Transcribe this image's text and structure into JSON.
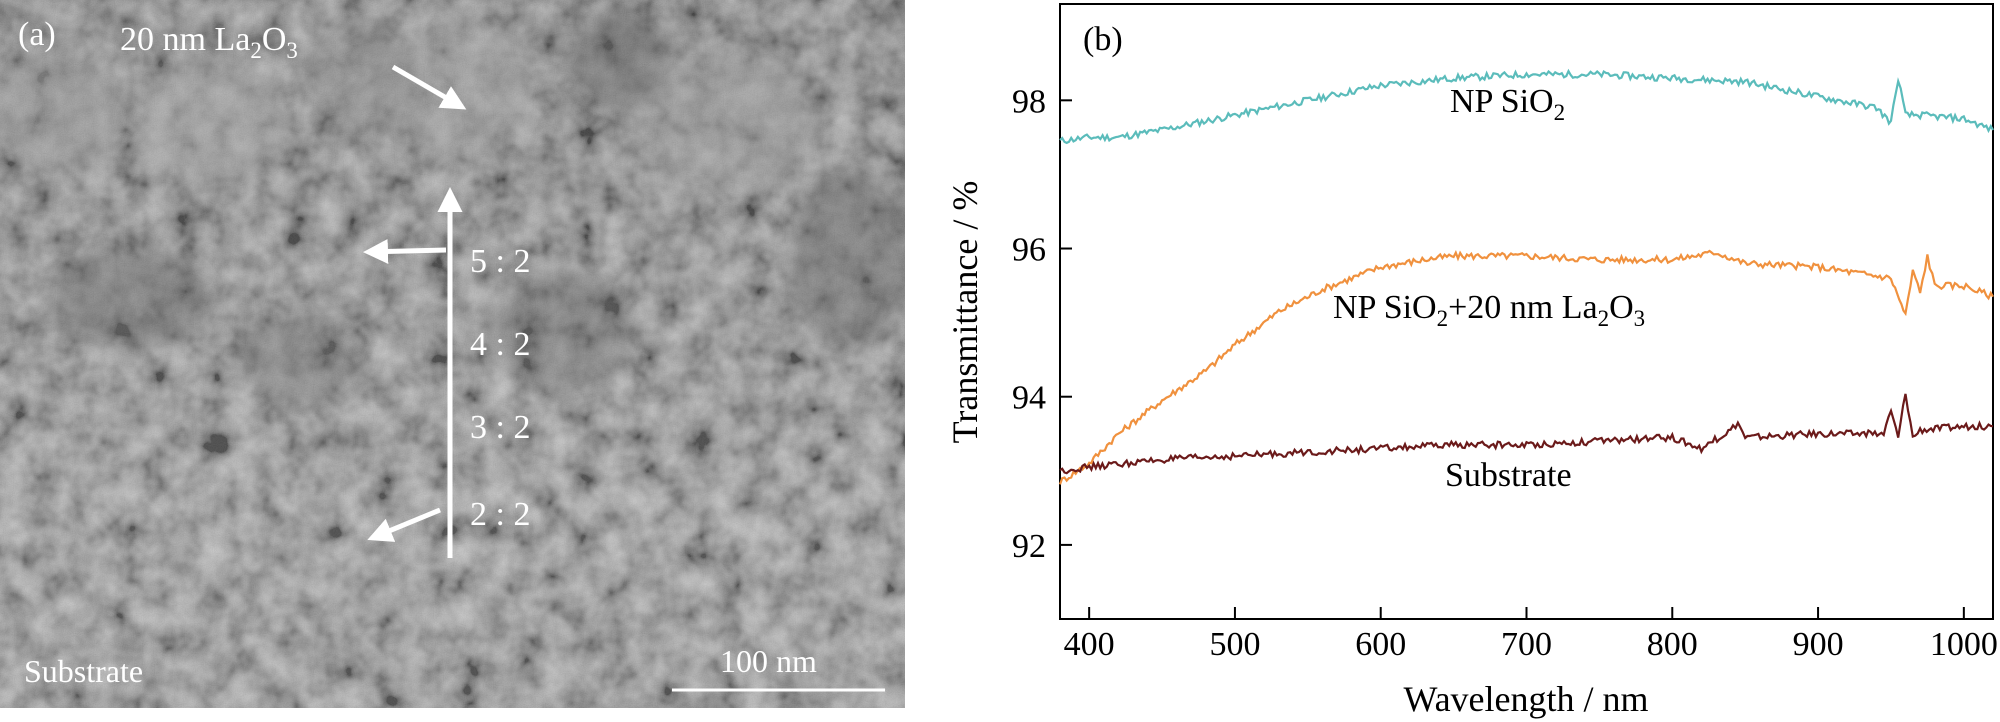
{
  "panel_a": {
    "label": "(a)",
    "top_label": {
      "prefix": "20 nm La",
      "sub1": "2",
      "mid": "O",
      "sub2": "3"
    },
    "ratios": [
      "5 : 2",
      "4 : 2",
      "3 : 2",
      "2 : 2"
    ],
    "substrate_label": "Substrate",
    "scale_bar_label": "100 nm"
  },
  "chart_data": {
    "type": "line",
    "panel_label": "(b)",
    "xlabel": "Wavelength / nm",
    "ylabel": "Transmittance / %",
    "xlim": [
      380,
      1020
    ],
    "ylim": [
      91,
      99.3
    ],
    "xticks": [
      400,
      500,
      600,
      700,
      800,
      900,
      1000
    ],
    "yticks": [
      92,
      94,
      96,
      98
    ],
    "grid": false,
    "series": [
      {
        "name": "NP SiO2",
        "color": "#5bbcbb",
        "label_parts": {
          "base": "NP SiO",
          "sub1": "2"
        },
        "x": [
          380,
          400,
          420,
          450,
          500,
          550,
          600,
          650,
          700,
          750,
          800,
          850,
          900,
          940,
          950,
          955,
          960,
          970,
          1000,
          1020
        ],
        "values": [
          97.45,
          97.5,
          97.5,
          97.6,
          97.8,
          98.0,
          98.2,
          98.3,
          98.35,
          98.35,
          98.3,
          98.25,
          98.05,
          97.9,
          97.7,
          98.3,
          97.8,
          97.8,
          97.75,
          97.6
        ]
      },
      {
        "name": "NP SiO2+20 nm La2O3",
        "color": "#f0913e",
        "label_parts": {
          "base": "NP SiO",
          "sub1": "2",
          "mid": "+20 nm La",
          "sub2": "2",
          "mid2": "O",
          "sub3": "3"
        },
        "x": [
          380,
          400,
          420,
          450,
          480,
          500,
          530,
          560,
          580,
          600,
          630,
          650,
          700,
          750,
          800,
          830,
          850,
          900,
          950,
          960,
          965,
          970,
          975,
          980,
          1000,
          1020
        ],
        "values": [
          92.85,
          93.1,
          93.5,
          93.95,
          94.35,
          94.7,
          95.15,
          95.45,
          95.6,
          95.75,
          95.85,
          95.9,
          95.9,
          95.85,
          95.85,
          95.95,
          95.8,
          95.75,
          95.6,
          95.1,
          95.7,
          95.4,
          95.9,
          95.5,
          95.5,
          95.35
        ]
      },
      {
        "name": "Substrate",
        "color": "#6b1a1a",
        "label_parts": {
          "base": "Substrate"
        },
        "x": [
          380,
          400,
          450,
          500,
          550,
          600,
          650,
          700,
          750,
          800,
          820,
          840,
          845,
          850,
          900,
          945,
          950,
          955,
          960,
          965,
          970,
          1000,
          1020
        ],
        "values": [
          93.0,
          93.05,
          93.15,
          93.2,
          93.25,
          93.3,
          93.35,
          93.35,
          93.4,
          93.45,
          93.3,
          93.55,
          93.65,
          93.45,
          93.5,
          93.5,
          93.8,
          93.45,
          94.05,
          93.45,
          93.55,
          93.6,
          93.6
        ]
      }
    ]
  }
}
